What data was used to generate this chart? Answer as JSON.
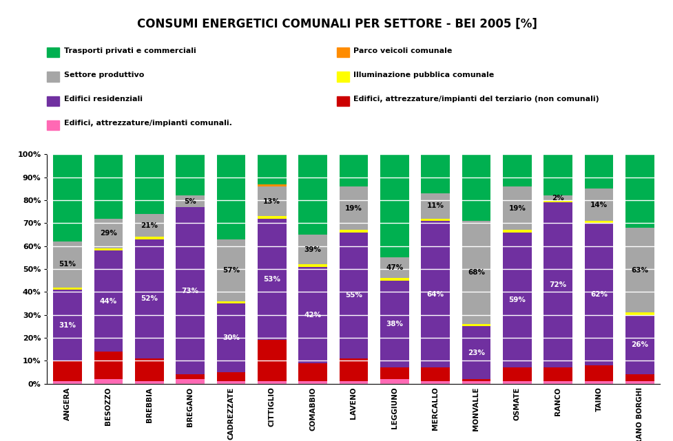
{
  "title": "CONSUMI ENERGETICI COMUNALI PER SETTORE - BEI 2005 [%]",
  "categories": [
    "ANGERA",
    "BESOZZO",
    "BREBBIA",
    "BREGANO",
    "CADREZZATE",
    "CITTIGLIO",
    "COMABBIO",
    "LAVENO",
    "LEGGIUNO",
    "MERCALLO",
    "MONVALLE",
    "OSMATE",
    "RANCO",
    "TAINO",
    "VARANO BORGHI"
  ],
  "series_order": [
    "Edifici, attrezzature/impianti comunali.",
    "Edifici, attrezzature/impianti del terziario (non comunali)",
    "Edifici residenziali",
    "Illuminazione pubblica comunale",
    "Settore produttivo",
    "Parco veicoli comunale",
    "Trasporti privati e commerciali"
  ],
  "series": {
    "Edifici, attrezzature/impianti comunali.": {
      "color": "#FF69B4",
      "values": [
        1,
        2,
        1,
        2,
        1,
        1,
        1,
        1,
        2,
        1,
        1,
        1,
        1,
        1,
        1
      ]
    },
    "Edifici, attrezzature/impianti del terziario (non comunali)": {
      "color": "#CC0000",
      "values": [
        9,
        12,
        10,
        2,
        4,
        18,
        8,
        10,
        5,
        6,
        1,
        6,
        6,
        7,
        3
      ]
    },
    "Edifici residenziali": {
      "color": "#7030A0",
      "values": [
        31,
        44,
        52,
        73,
        30,
        53,
        42,
        55,
        38,
        64,
        23,
        59,
        72,
        62,
        26
      ]
    },
    "Illuminazione pubblica comunale": {
      "color": "#FFFF00",
      "values": [
        1,
        1,
        1,
        0,
        1,
        1,
        1,
        1,
        1,
        1,
        1,
        1,
        1,
        1,
        1
      ]
    },
    "Settore produttivo": {
      "color": "#A6A6A6",
      "values": [
        20,
        13,
        10,
        5,
        27,
        13,
        13,
        19,
        9,
        11,
        45,
        19,
        2,
        14,
        37
      ]
    },
    "Parco veicoli comunale": {
      "color": "#FF8C00",
      "values": [
        0,
        0,
        0,
        0,
        0,
        1,
        0,
        0,
        0,
        0,
        0,
        0,
        0,
        0,
        0
      ]
    },
    "Trasporti privati e commerciali": {
      "color": "#00B050",
      "values": [
        38,
        28,
        26,
        18,
        37,
        13,
        35,
        14,
        45,
        17,
        29,
        14,
        18,
        15,
        32
      ]
    }
  },
  "legend_col1": [
    "Trasporti privati e commerciali",
    "Settore produttivo",
    "Edifici residenziali",
    "Edifici, attrezzature/impianti comunali."
  ],
  "legend_col2": [
    "Parco veicoli comunale",
    "Illuminazione pubblica comunale",
    "Edifici, attrezzature/impianti del terziario (non comunali)"
  ],
  "res_labels": [
    31,
    44,
    52,
    73,
    30,
    53,
    42,
    55,
    38,
    64,
    23,
    59,
    72,
    62,
    26
  ],
  "prod_labels": [
    51,
    29,
    21,
    5,
    57,
    13,
    39,
    19,
    47,
    11,
    68,
    19,
    2,
    14,
    63
  ]
}
